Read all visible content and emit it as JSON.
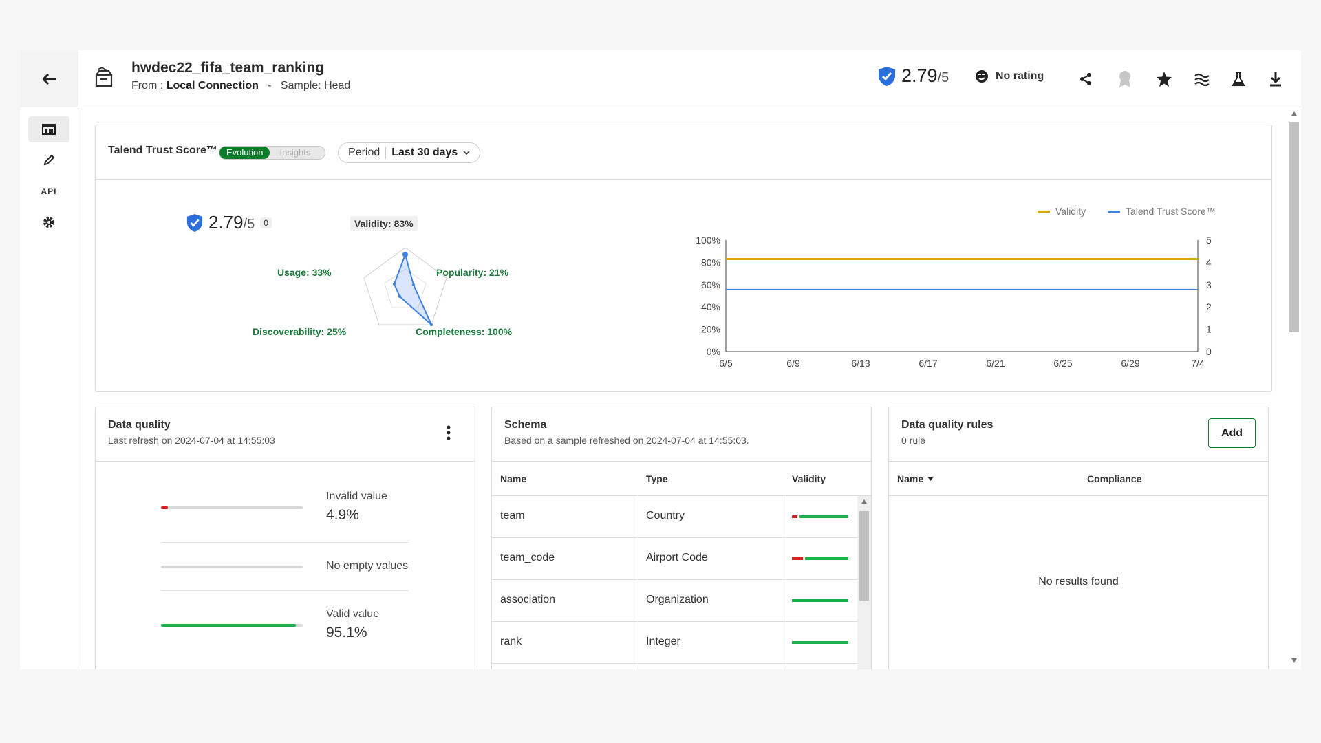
{
  "header": {
    "title": "hwdec22_fifa_team_ranking",
    "from_label": "From :",
    "from_value": "Local Connection",
    "separator": "-",
    "sample_label": "Sample: Head",
    "score": "2.79",
    "score_denominator": "/5",
    "rating": "No rating"
  },
  "trust": {
    "title": "Talend Trust Score™",
    "toggle_on": "Evolution",
    "toggle_off": "Insights",
    "period_label": "Period",
    "period_value": "Last 30 days",
    "score": "2.79",
    "score_denominator": "/5",
    "badge": "0",
    "radar": {
      "validity": "Validity: 83%",
      "popularity": "Popularity: 21%",
      "completeness": "Completeness: 100%",
      "discoverability": "Discoverability: 25%",
      "usage": "Usage: 33%"
    }
  },
  "chart_data": {
    "type": "line",
    "x": [
      "6/5",
      "6/9",
      "6/13",
      "6/17",
      "6/21",
      "6/25",
      "6/29",
      "7/4"
    ],
    "series": [
      {
        "name": "Validity",
        "axis": "left",
        "color": "#d9a800",
        "values": [
          83,
          83,
          83,
          83,
          83,
          83,
          83,
          83
        ]
      },
      {
        "name": "Talend Trust Score™",
        "axis": "right",
        "color": "#3f82e0",
        "values": [
          2.79,
          2.79,
          2.79,
          2.79,
          2.79,
          2.79,
          2.79,
          2.79
        ]
      }
    ],
    "y_left_ticks": [
      "0%",
      "20%",
      "40%",
      "60%",
      "80%",
      "100%"
    ],
    "y_right_ticks": [
      "0",
      "1",
      "2",
      "3",
      "4",
      "5"
    ],
    "ylim_left": [
      0,
      100
    ],
    "ylim_right": [
      0,
      5
    ],
    "legend_position": "top-right"
  },
  "data_quality": {
    "title": "Data quality",
    "subtitle": "Last refresh on 2024-07-04 at 14:55:03",
    "invalid_label": "Invalid value",
    "invalid_value": "4.9%",
    "invalid_fraction": 0.049,
    "empty_label": "No empty values",
    "valid_label": "Valid value",
    "valid_value": "95.1%",
    "valid_fraction": 0.951
  },
  "schema": {
    "title": "Schema",
    "subtitle": "Based on a sample refreshed on 2024-07-04 at 14:55:03.",
    "columns": [
      "Name",
      "Type",
      "Validity"
    ],
    "rows": [
      {
        "name": "team",
        "type": "Country",
        "invalid_fraction": 0.1
      },
      {
        "name": "team_code",
        "type": "Airport Code",
        "invalid_fraction": 0.2
      },
      {
        "name": "association",
        "type": "Organization",
        "invalid_fraction": 0
      },
      {
        "name": "rank",
        "type": "Integer",
        "invalid_fraction": 0
      }
    ]
  },
  "rules": {
    "title": "Data quality rules",
    "subtitle": "0 rule",
    "add_label": "Add",
    "col_name": "Name",
    "col_compliance": "Compliance",
    "empty": "No results found"
  },
  "rail": {
    "api_label": "API"
  },
  "colors": {
    "accent_green": "#0a7d2a",
    "valid_green": "#1bb24b",
    "invalid_red": "#d62222",
    "shield_blue": "#2a6fdb"
  }
}
